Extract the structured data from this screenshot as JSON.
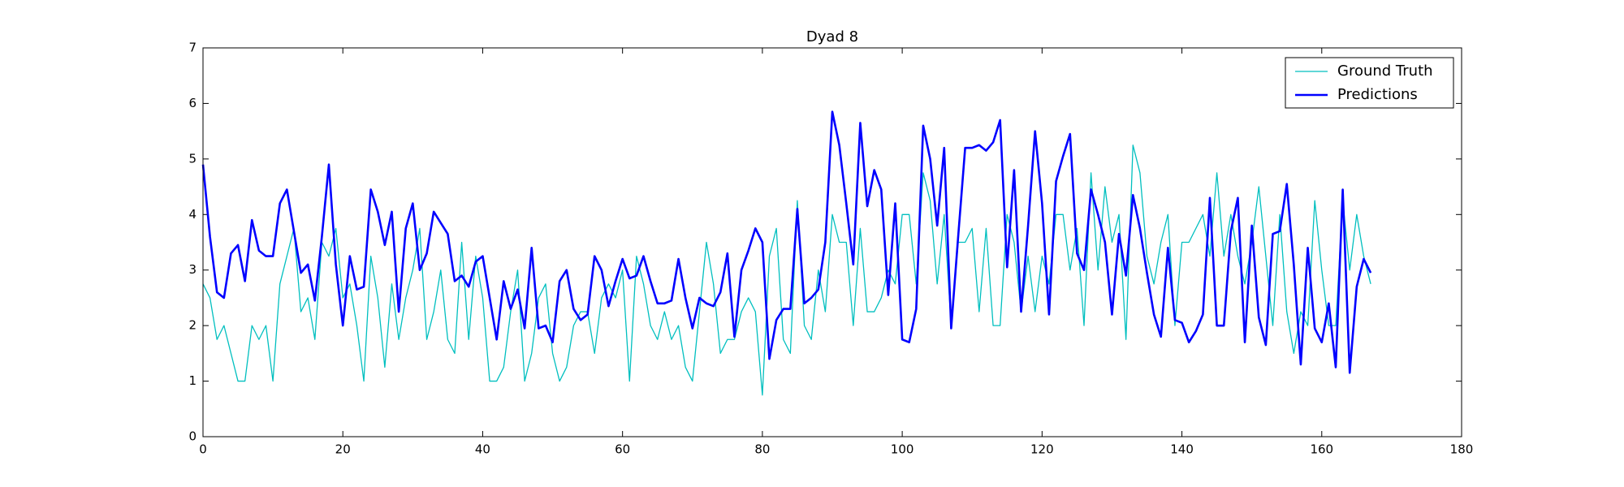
{
  "chart_data": {
    "type": "line",
    "title": "Dyad 8",
    "x": [
      0,
      1,
      2,
      3,
      4,
      5,
      6,
      7,
      8,
      9,
      10,
      11,
      12,
      13,
      14,
      15,
      16,
      17,
      18,
      19,
      20,
      21,
      22,
      23,
      24,
      25,
      26,
      27,
      28,
      29,
      30,
      31,
      32,
      33,
      34,
      35,
      36,
      37,
      38,
      39,
      40,
      41,
      42,
      43,
      44,
      45,
      46,
      47,
      48,
      49,
      50,
      51,
      52,
      53,
      54,
      55,
      56,
      57,
      58,
      59,
      60,
      61,
      62,
      63,
      64,
      65,
      66,
      67,
      68,
      69,
      70,
      71,
      72,
      73,
      74,
      75,
      76,
      77,
      78,
      79,
      80,
      81,
      82,
      83,
      84,
      85,
      86,
      87,
      88,
      89,
      90,
      91,
      92,
      93,
      94,
      95,
      96,
      97,
      98,
      99,
      100,
      101,
      102,
      103,
      104,
      105,
      106,
      107,
      108,
      109,
      110,
      111,
      112,
      113,
      114,
      115,
      116,
      117,
      118,
      119,
      120,
      121,
      122,
      123,
      124,
      125,
      126,
      127,
      128,
      129,
      130,
      131,
      132,
      133,
      134,
      135,
      136,
      137,
      138,
      139,
      140,
      141,
      142,
      143,
      144,
      145,
      146,
      147,
      148,
      149,
      150,
      151,
      152,
      153,
      154,
      155,
      156,
      157,
      158,
      159,
      160,
      161,
      162,
      163,
      164,
      165,
      166,
      167
    ],
    "series": [
      {
        "name": "Ground Truth",
        "color": "#00bfbf",
        "width": 1.3,
        "values": [
          2.75,
          2.5,
          1.75,
          2.0,
          1.5,
          1.0,
          1.0,
          2.0,
          1.75,
          2.0,
          1.0,
          2.75,
          3.25,
          3.75,
          2.25,
          2.5,
          1.75,
          3.5,
          3.25,
          3.75,
          2.5,
          2.75,
          2.0,
          1.0,
          3.25,
          2.5,
          1.25,
          2.75,
          1.75,
          2.5,
          3.0,
          3.75,
          1.75,
          2.25,
          3.0,
          1.75,
          1.5,
          3.5,
          1.75,
          3.25,
          2.5,
          1.0,
          1.0,
          1.25,
          2.25,
          3.0,
          1.0,
          1.5,
          2.5,
          2.75,
          1.5,
          1.0,
          1.25,
          2.0,
          2.25,
          2.25,
          1.5,
          2.5,
          2.75,
          2.5,
          3.0,
          1.0,
          3.25,
          2.75,
          2.0,
          1.75,
          2.25,
          1.75,
          2.0,
          1.25,
          1.0,
          2.25,
          3.5,
          2.75,
          1.5,
          1.75,
          1.75,
          2.25,
          2.5,
          2.25,
          0.75,
          3.25,
          3.75,
          1.75,
          1.5,
          4.25,
          2.0,
          1.75,
          3.0,
          2.25,
          4.0,
          3.5,
          3.5,
          2.0,
          3.75,
          2.25,
          2.25,
          2.5,
          3.0,
          2.75,
          4.0,
          4.0,
          2.75,
          4.75,
          4.25,
          2.75,
          4.0,
          2.0,
          3.5,
          3.5,
          3.75,
          2.25,
          3.75,
          2.0,
          2.0,
          4.0,
          3.5,
          2.25,
          3.25,
          2.25,
          3.25,
          2.75,
          4.0,
          4.0,
          3.0,
          3.75,
          2.0,
          4.75,
          3.0,
          4.5,
          3.5,
          4.0,
          1.75,
          5.25,
          4.75,
          3.25,
          2.75,
          3.5,
          4.0,
          2.0,
          3.5,
          3.5,
          3.75,
          4.0,
          3.25,
          4.75,
          3.25,
          4.0,
          3.25,
          2.75,
          3.5,
          4.5,
          3.25,
          2.0,
          4.0,
          2.25,
          1.5,
          2.25,
          2.0,
          4.25,
          3.0,
          2.0,
          2.0,
          4.25,
          3.0,
          4.0,
          3.25,
          2.75
        ]
      },
      {
        "name": "Predictions",
        "color": "#0000ff",
        "width": 2.6,
        "values": [
          4.9,
          3.6,
          2.6,
          2.5,
          3.3,
          3.45,
          2.8,
          3.9,
          3.35,
          3.25,
          3.25,
          4.2,
          4.45,
          3.7,
          2.95,
          3.1,
          2.45,
          3.6,
          4.9,
          3.1,
          2.0,
          3.25,
          2.65,
          2.7,
          4.45,
          4.05,
          3.45,
          4.05,
          2.25,
          3.75,
          4.2,
          3.0,
          3.3,
          4.05,
          3.85,
          3.65,
          2.8,
          2.9,
          2.7,
          3.15,
          3.25,
          2.5,
          1.75,
          2.8,
          2.3,
          2.65,
          1.95,
          3.4,
          1.95,
          2.0,
          1.7,
          2.8,
          3.0,
          2.3,
          2.1,
          2.2,
          3.25,
          3.0,
          2.35,
          2.8,
          3.2,
          2.85,
          2.9,
          3.25,
          2.8,
          2.4,
          2.4,
          2.45,
          3.2,
          2.5,
          1.95,
          2.5,
          2.4,
          2.35,
          2.6,
          3.3,
          1.8,
          3.0,
          3.35,
          3.75,
          3.5,
          1.4,
          2.1,
          2.3,
          2.3,
          4.1,
          2.4,
          2.5,
          2.65,
          3.5,
          5.85,
          5.25,
          4.2,
          3.1,
          5.65,
          4.15,
          4.8,
          4.45,
          2.55,
          4.2,
          1.75,
          1.7,
          2.3,
          5.6,
          5.0,
          3.8,
          5.2,
          1.95,
          3.6,
          5.2,
          5.2,
          5.25,
          5.15,
          5.3,
          5.7,
          3.05,
          4.8,
          2.25,
          3.8,
          5.5,
          4.2,
          2.2,
          4.6,
          5.05,
          5.45,
          3.3,
          3.0,
          4.45,
          4.0,
          3.5,
          2.2,
          3.65,
          2.9,
          4.35,
          3.75,
          2.95,
          2.2,
          1.8,
          3.4,
          2.1,
          2.05,
          1.7,
          1.9,
          2.2,
          4.3,
          2.0,
          2.0,
          3.7,
          4.3,
          1.7,
          3.8,
          2.15,
          1.65,
          3.65,
          3.7,
          4.55,
          3.1,
          1.3,
          3.4,
          1.95,
          1.7,
          2.4,
          1.25,
          4.45,
          1.15,
          2.7,
          3.2,
          2.95
        ]
      }
    ],
    "xlim": [
      0,
      180
    ],
    "xticks": [
      0,
      20,
      40,
      60,
      80,
      100,
      120,
      140,
      160,
      180
    ],
    "ylim": [
      0,
      7
    ],
    "yticks": [
      0,
      1,
      2,
      3,
      4,
      5,
      6,
      7
    ],
    "legend": "upper right"
  }
}
